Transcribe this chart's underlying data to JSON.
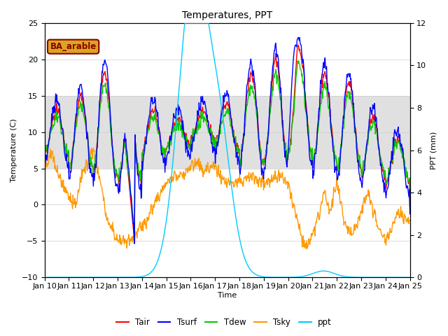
{
  "title": "Temperatures, PPT",
  "xlabel": "Time",
  "ylabel_left": "Temperature (C)",
  "ylabel_right": "PPT (mm)",
  "legend_label": "BA_arable",
  "legend_entries": [
    "Tair",
    "Tsurf",
    "Tdew",
    "Tsky",
    "ppt"
  ],
  "legend_colors": [
    "#ff0000",
    "#0000ff",
    "#00cc00",
    "#ff9900",
    "#00ccff"
  ],
  "ylim_left": [
    -10,
    25
  ],
  "ylim_right": [
    0,
    12
  ],
  "xlim": [
    0,
    15
  ],
  "tick_labels": [
    "Jan 10",
    "Jan 11",
    "Jan 12",
    "Jan 13",
    "Jan 14",
    "Jan 15",
    "Jan 16",
    "Jan 17",
    "Jan 18",
    "Jan 19",
    "Jan 20",
    "Jan 21",
    "Jan 22",
    "Jan 23",
    "Jan 24",
    "Jan 25"
  ],
  "band_light": [
    5,
    15
  ],
  "bg_color": "#ffffff",
  "band_color": "#e0e0e0",
  "figsize": [
    6.4,
    4.8
  ],
  "dpi": 100
}
